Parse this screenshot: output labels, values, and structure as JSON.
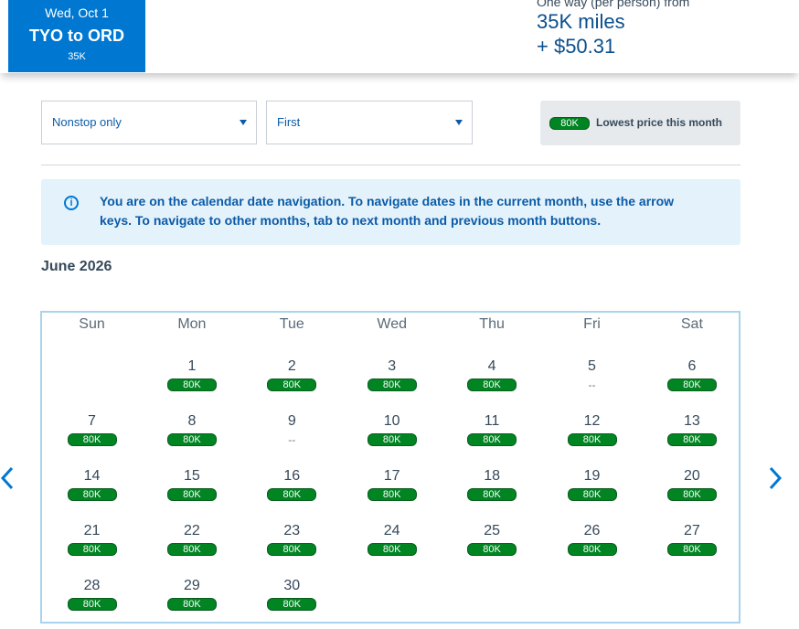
{
  "header": {
    "selected_tab": {
      "date": "Wed, Oct 1",
      "route": "TYO to ORD",
      "miles": "35K"
    },
    "fare": {
      "label": "One way (per person) from",
      "miles": "35K miles",
      "tax": "+ $50.31"
    }
  },
  "filters": {
    "stops": {
      "value": "Nonstop only"
    },
    "cabin": {
      "value": "First"
    }
  },
  "legend": {
    "badge": "80K",
    "label": "Lowest price this month"
  },
  "info": {
    "icon": "info-icon",
    "message": "You are on the calendar date navigation. To navigate dates in the current month, use the arrow keys. To navigate to other months, tab to next month and previous month buttons."
  },
  "calendar": {
    "month_title": "June 2026",
    "weekdays": [
      "Sun",
      "Mon",
      "Tue",
      "Wed",
      "Thu",
      "Fri",
      "Sat"
    ],
    "first_weekday_index": 1,
    "days": [
      {
        "day": "1",
        "price": "80K"
      },
      {
        "day": "2",
        "price": "80K"
      },
      {
        "day": "3",
        "price": "80K"
      },
      {
        "day": "4",
        "price": "80K"
      },
      {
        "day": "5",
        "price": "--"
      },
      {
        "day": "6",
        "price": "80K"
      },
      {
        "day": "7",
        "price": "80K"
      },
      {
        "day": "8",
        "price": "80K"
      },
      {
        "day": "9",
        "price": "--"
      },
      {
        "day": "10",
        "price": "80K"
      },
      {
        "day": "11",
        "price": "80K"
      },
      {
        "day": "12",
        "price": "80K"
      },
      {
        "day": "13",
        "price": "80K"
      },
      {
        "day": "14",
        "price": "80K"
      },
      {
        "day": "15",
        "price": "80K"
      },
      {
        "day": "16",
        "price": "80K"
      },
      {
        "day": "17",
        "price": "80K"
      },
      {
        "day": "18",
        "price": "80K"
      },
      {
        "day": "19",
        "price": "80K"
      },
      {
        "day": "20",
        "price": "80K"
      },
      {
        "day": "21",
        "price": "80K"
      },
      {
        "day": "22",
        "price": "80K"
      },
      {
        "day": "23",
        "price": "80K"
      },
      {
        "day": "24",
        "price": "80K"
      },
      {
        "day": "25",
        "price": "80K"
      },
      {
        "day": "26",
        "price": "80K"
      },
      {
        "day": "27",
        "price": "80K"
      },
      {
        "day": "28",
        "price": "80K"
      },
      {
        "day": "29",
        "price": "80K"
      },
      {
        "day": "30",
        "price": "80K"
      }
    ]
  },
  "nav": {
    "prev_icon": "chevron-left-icon",
    "next_icon": "chevron-right-icon"
  },
  "colors": {
    "primary": "#0078d2",
    "price_badge": "#008522",
    "info_bg": "#e4f2fb"
  }
}
